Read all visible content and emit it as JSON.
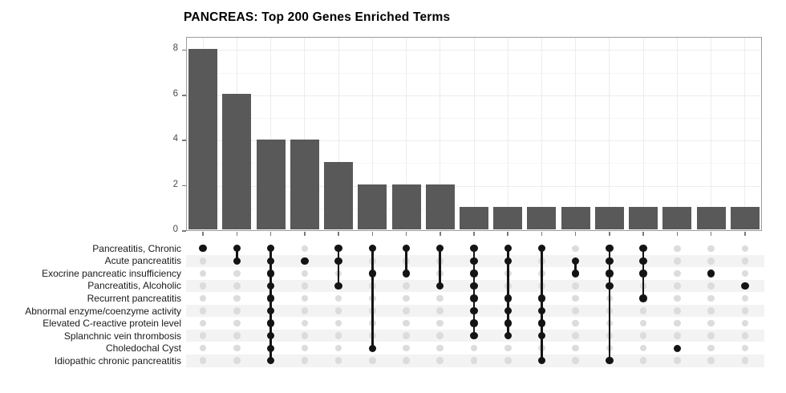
{
  "title": "PANCREAS: Top 200 Genes Enriched Terms",
  "chart_data": {
    "type": "bar",
    "subtype": "upset-plot",
    "title": "PANCREAS: Top 200 Genes Enriched Terms",
    "xlabel": "",
    "ylabel": "",
    "ylim": [
      0,
      8.58
    ],
    "yticks": [
      0,
      2,
      4,
      6,
      8
    ],
    "ytick_labels": [
      "0",
      "2",
      "4",
      "6",
      "8"
    ],
    "grid": true,
    "legend_position": "none",
    "sets": [
      "Pancreatitis, Chronic",
      "Acute pancreatitis",
      "Exocrine pancreatic insufficiency",
      "Pancreatitis, Alcoholic",
      "Recurrent pancreatitis",
      "Abnormal enzyme/coenzyme activity",
      "Elevated C-reactive protein level",
      "Splanchnic vein thrombosis",
      "Choledochal Cyst",
      "Idiopathic chronic pancreatitis"
    ],
    "intersections": [
      {
        "size": 8,
        "members": [
          0
        ]
      },
      {
        "size": 6,
        "members": [
          0,
          1
        ]
      },
      {
        "size": 4,
        "members": [
          0,
          1,
          2,
          3,
          4,
          5,
          6,
          7,
          8,
          9
        ]
      },
      {
        "size": 4,
        "members": [
          1
        ]
      },
      {
        "size": 3,
        "members": [
          0,
          1,
          3
        ]
      },
      {
        "size": 2,
        "members": [
          0,
          2,
          8
        ]
      },
      {
        "size": 2,
        "members": [
          0,
          2
        ]
      },
      {
        "size": 2,
        "members": [
          0,
          3
        ]
      },
      {
        "size": 1,
        "members": [
          0,
          1,
          2,
          3,
          4,
          5,
          6,
          7
        ]
      },
      {
        "size": 1,
        "members": [
          0,
          1,
          4,
          5,
          6,
          7
        ]
      },
      {
        "size": 1,
        "members": [
          0,
          4,
          5,
          6,
          7,
          9
        ]
      },
      {
        "size": 1,
        "members": [
          1,
          2
        ]
      },
      {
        "size": 1,
        "members": [
          0,
          1,
          2,
          3,
          9
        ]
      },
      {
        "size": 1,
        "members": [
          0,
          1,
          2,
          4
        ]
      },
      {
        "size": 1,
        "members": [
          8
        ]
      },
      {
        "size": 1,
        "members": [
          2
        ]
      },
      {
        "size": 1,
        "members": [
          3
        ]
      }
    ],
    "colors": {
      "bar": "#595959",
      "dot_active": "#141414",
      "dot_inactive": "#dcdcdc",
      "connector": "#141414",
      "row_stripe": "#f3f3f3",
      "grid_major": "#ececec",
      "grid_minor": "#f6f6f6",
      "panel_border": "#9c9c9c",
      "axis_text": "#4a4a4a",
      "tick_mark": "#7a7a7a"
    }
  }
}
